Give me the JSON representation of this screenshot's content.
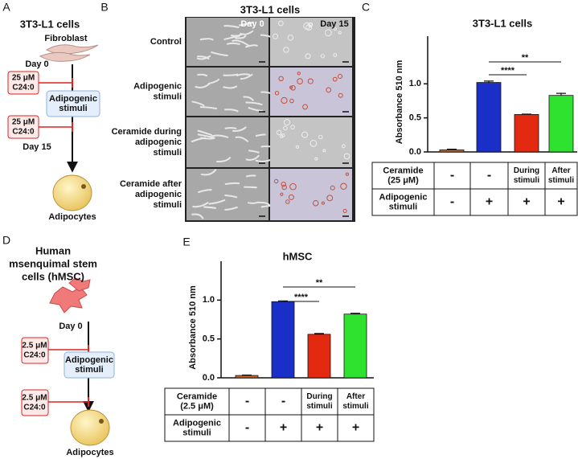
{
  "panel_a": {
    "label": "A",
    "title": "3T3-L1 cells",
    "start_cell": "Fibroblast",
    "day_start": "Day 0",
    "treatment_1": [
      "25 μM",
      "C24:0"
    ],
    "stimuli": [
      "Adipogenic",
      "stimuli"
    ],
    "treatment_2": [
      "25 μM",
      "C24:0"
    ],
    "day_end": "Day 15",
    "end_cell": "Adipocytes"
  },
  "panel_b": {
    "label": "B",
    "title": "3T3-L1 cells",
    "columns": [
      "Day 0",
      "Day 15"
    ],
    "rows": [
      [
        "Control"
      ],
      [
        "Adipogenic",
        "stimuli"
      ],
      [
        "Ceramide during",
        "adipogenic",
        "stimuli"
      ],
      [
        "Ceramide after",
        "adipogenic",
        "stimuli"
      ]
    ]
  },
  "panel_d": {
    "label": "D",
    "title": [
      "Human",
      "msenquimal stem",
      "cells (hMSC)"
    ],
    "day_start": "Day 0",
    "treatment_1": [
      "2.5 μM",
      "C24:0"
    ],
    "stimuli": [
      "Adipogenic",
      "stimuli"
    ],
    "treatment_2": [
      "2.5 μM",
      "C24:0"
    ],
    "end_cell": "Adipocytes"
  },
  "chart_data": [
    {
      "type": "bar",
      "panel": "C",
      "title": "3T3-L1 cells",
      "y_label": "Absorbance 510 nm",
      "categories": [
        null,
        null,
        null,
        null
      ],
      "values": [
        0.03,
        1.02,
        0.55,
        0.83
      ],
      "errors": [
        0.01,
        0.02,
        0.005,
        0.03
      ],
      "colors": [
        "#d0652a",
        "#1a2fc8",
        "#e3290f",
        "#2fe22f"
      ],
      "ylim": [
        0,
        1.7
      ],
      "yticks": [
        {
          "value": 0,
          "label": "0.0"
        },
        0.5,
        {
          "value": 1,
          "label": "1.0"
        }
      ],
      "significance": [
        "**",
        "****"
      ],
      "table": [
        {
          "label": [
            "Ceramide",
            "(25 μM)"
          ],
          "cells": [
            [
              "-"
            ],
            [
              "-"
            ],
            [
              "During",
              "stimuli"
            ],
            [
              "After",
              "stimuli"
            ]
          ]
        },
        {
          "label": [
            "Adipogenic",
            "stimuli"
          ],
          "cells": [
            [
              "-"
            ],
            [
              "+"
            ],
            [
              "+"
            ],
            [
              "+"
            ]
          ]
        }
      ]
    },
    {
      "type": "bar",
      "panel": "E",
      "title": "hMSC",
      "y_label": "Absorbance 510 nm",
      "categories": [
        null,
        null,
        null,
        null
      ],
      "values": [
        0.03,
        0.98,
        0.56,
        0.82
      ],
      "errors": [
        0.005,
        0.01,
        0.01,
        0.01
      ],
      "colors": [
        "#d0652a",
        "#1a2fc8",
        "#e3290f",
        "#2fe22f"
      ],
      "ylim": [
        0,
        1.5
      ],
      "yticks": [
        {
          "value": 0,
          "label": "0.0"
        },
        0.5,
        {
          "value": 1,
          "label": "1.0"
        }
      ],
      "significance": [
        "**",
        "****"
      ],
      "table": [
        {
          "label": [
            "Ceramide",
            "(2.5 μM)"
          ],
          "cells": [
            [
              "-"
            ],
            [
              "-"
            ],
            [
              "During",
              "stimuli"
            ],
            [
              "After",
              "stimuli"
            ]
          ]
        },
        {
          "label": [
            "Adipogenic",
            "stimuli"
          ],
          "cells": [
            [
              "-"
            ],
            [
              "+"
            ],
            [
              "+"
            ],
            [
              "+"
            ]
          ]
        }
      ]
    }
  ]
}
